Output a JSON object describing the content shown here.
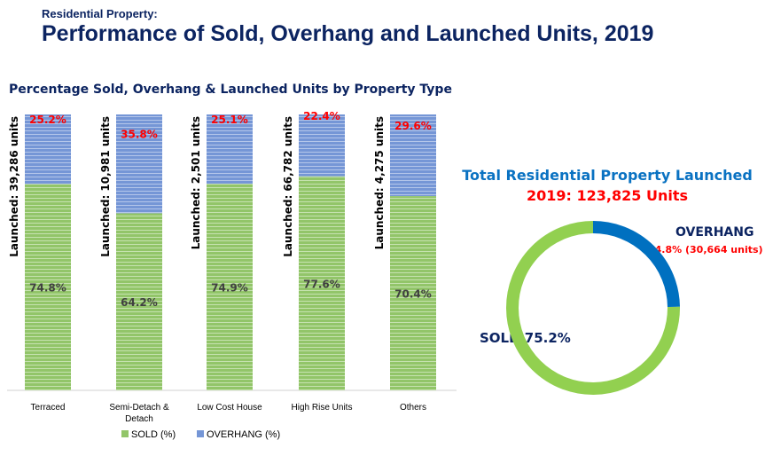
{
  "header": {
    "subtitle": "Residential Property:",
    "title": "Performance of Sold, Overhang and Launched Units, 2019"
  },
  "chart_data": [
    {
      "type": "bar",
      "stacked": true,
      "title": "Percentage Sold, Overhang & Launched Units by Property Type",
      "categories": [
        "Terraced",
        "Semi-Detach & Detach",
        "Low Cost House",
        "High Rise Units",
        "Others"
      ],
      "category_lines": [
        [
          "Terraced"
        ],
        [
          "Semi-Detach  &",
          "Detach"
        ],
        [
          "Low Cost House"
        ],
        [
          "High Rise Units"
        ],
        [
          "Others"
        ]
      ],
      "launched_labels": [
        "Launched: 39,286 units",
        "Launched: 10,981 units",
        "Launched: 2,501 units",
        "Launched: 66,782 units",
        "Launched: 4,275 units"
      ],
      "series": [
        {
          "name": "SOLD (%)",
          "color": "#92c569",
          "values": [
            74.8,
            64.2,
            74.9,
            77.6,
            70.4
          ],
          "labels": [
            "74.8%",
            "64.2%",
            "74.9%",
            "77.6%",
            "70.4%"
          ]
        },
        {
          "name": "OVERHANG (%)",
          "color": "#7596d6",
          "values": [
            25.2,
            35.8,
            25.1,
            22.4,
            29.6
          ],
          "labels": [
            "25.2%",
            "35.8%",
            "25.1%",
            "22.4%",
            "29.6%"
          ]
        }
      ],
      "ylim": [
        0,
        100
      ],
      "legend": "bottom"
    },
    {
      "type": "pie",
      "donut": true,
      "title": "Total Residential Property Launched",
      "subtitle": "2019: 123,825 Units",
      "slices": [
        {
          "name": "OVERHANG",
          "value": 24.8,
          "units": 30664,
          "label": "24.8% (30,664 units)",
          "color": "#0070c0"
        },
        {
          "name": "SOLD",
          "value": 75.2,
          "label": "SOLD 75.2%",
          "color": "#92d050"
        }
      ]
    }
  ]
}
